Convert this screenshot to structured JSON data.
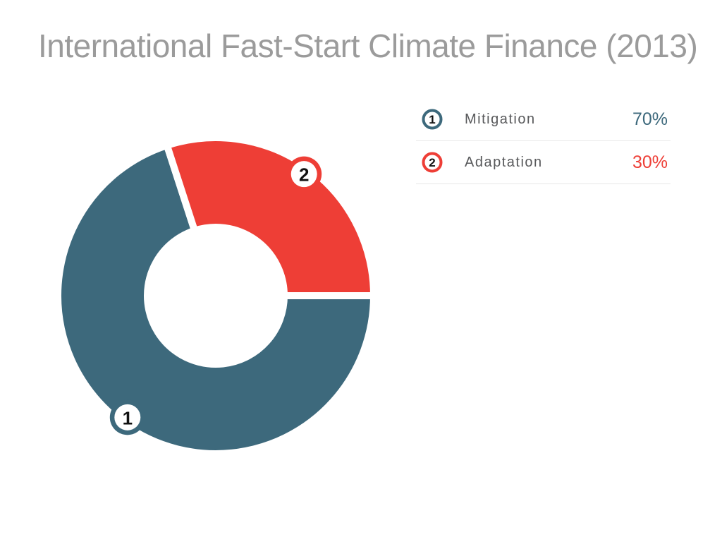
{
  "title": "International Fast-Start Climate Finance (2013)",
  "colors": {
    "mitigation": "#3D697C",
    "adaptation": "#EE3E36",
    "title_text": "#9B9B9B",
    "label_text": "#58595B",
    "marker_number": "#111111",
    "divider": "#E8E8E8",
    "background": "#FFFFFF"
  },
  "chart_data": {
    "type": "pie",
    "subtype": "donut",
    "title": "International Fast-Start Climate Finance (2013)",
    "categories": [
      "Mitigation",
      "Adaptation"
    ],
    "values": [
      70,
      30
    ],
    "unit": "percent",
    "data_labels": [
      "70%",
      "30%"
    ],
    "colors": [
      "#3D697C",
      "#EE3E36"
    ],
    "segment_markers": [
      "1",
      "2"
    ],
    "start_angle_deg": 108,
    "direction": "counterclockwise",
    "inner_radius_ratio": 0.46,
    "segment_gap_color": "#FFFFFF",
    "legend_position": "right"
  },
  "legend": {
    "items": [
      {
        "index": "1",
        "label": "Mitigation",
        "value": "70%",
        "color": "#3D697C"
      },
      {
        "index": "2",
        "label": "Adaptation",
        "value": "30%",
        "color": "#EE3E36"
      }
    ]
  }
}
